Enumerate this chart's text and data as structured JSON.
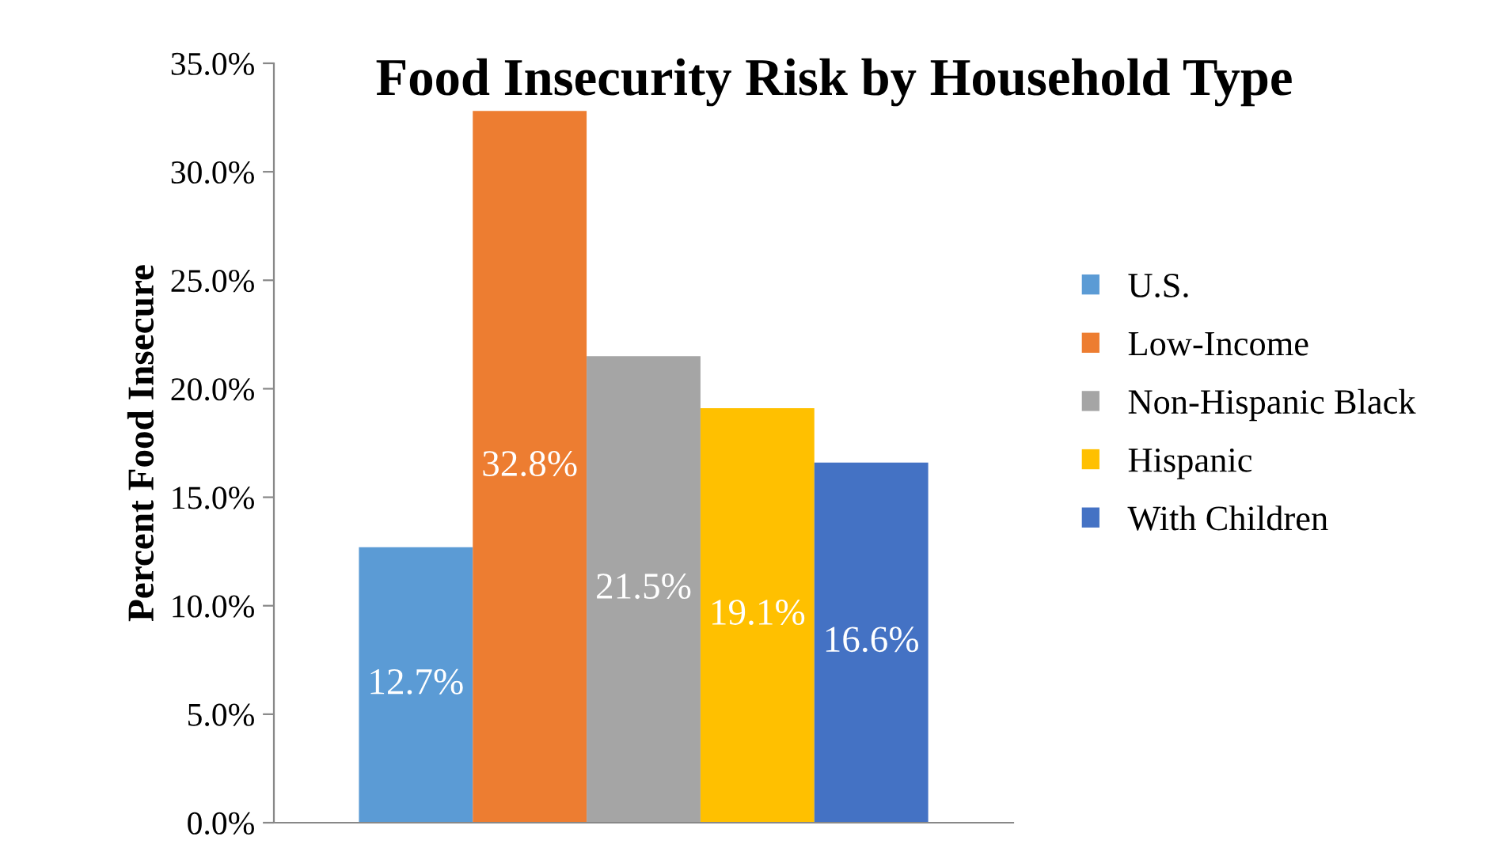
{
  "chart_data": {
    "type": "bar",
    "title": "Food Insecurity Risk by Household Type",
    "ylabel": "Percent Food Insecure",
    "categories": [
      null
    ],
    "series": [
      {
        "name": "U.S.",
        "color": "#5b9bd5",
        "values": [
          12.7
        ],
        "value_labels": [
          "12.7%"
        ]
      },
      {
        "name": "Low-Income",
        "color": "#ed7d31",
        "values": [
          32.8
        ],
        "value_labels": [
          "32.8%"
        ]
      },
      {
        "name": "Non-Hispanic Black",
        "color": "#a5a5a5",
        "values": [
          21.5
        ],
        "value_labels": [
          "21.5%"
        ]
      },
      {
        "name": "Hispanic",
        "color": "#ffc000",
        "values": [
          19.1
        ],
        "value_labels": [
          "19.1%"
        ]
      },
      {
        "name": "With Children",
        "color": "#4472c4",
        "values": [
          16.6
        ],
        "value_labels": [
          "16.6%"
        ]
      }
    ],
    "ylim": [
      0,
      35
    ],
    "yticks": [
      {
        "value": 0,
        "label": "0.0%"
      },
      {
        "value": 5,
        "label": "5.0%"
      },
      {
        "value": 10,
        "label": "10.0%"
      },
      {
        "value": 15,
        "label": "15.0%"
      },
      {
        "value": 20,
        "label": "20.0%"
      },
      {
        "value": 25,
        "label": "25.0%"
      },
      {
        "value": 30,
        "label": "30.0%"
      },
      {
        "value": 35,
        "label": "35.0%"
      }
    ],
    "tick_labels": "y",
    "grid": false,
    "legend": "right"
  }
}
